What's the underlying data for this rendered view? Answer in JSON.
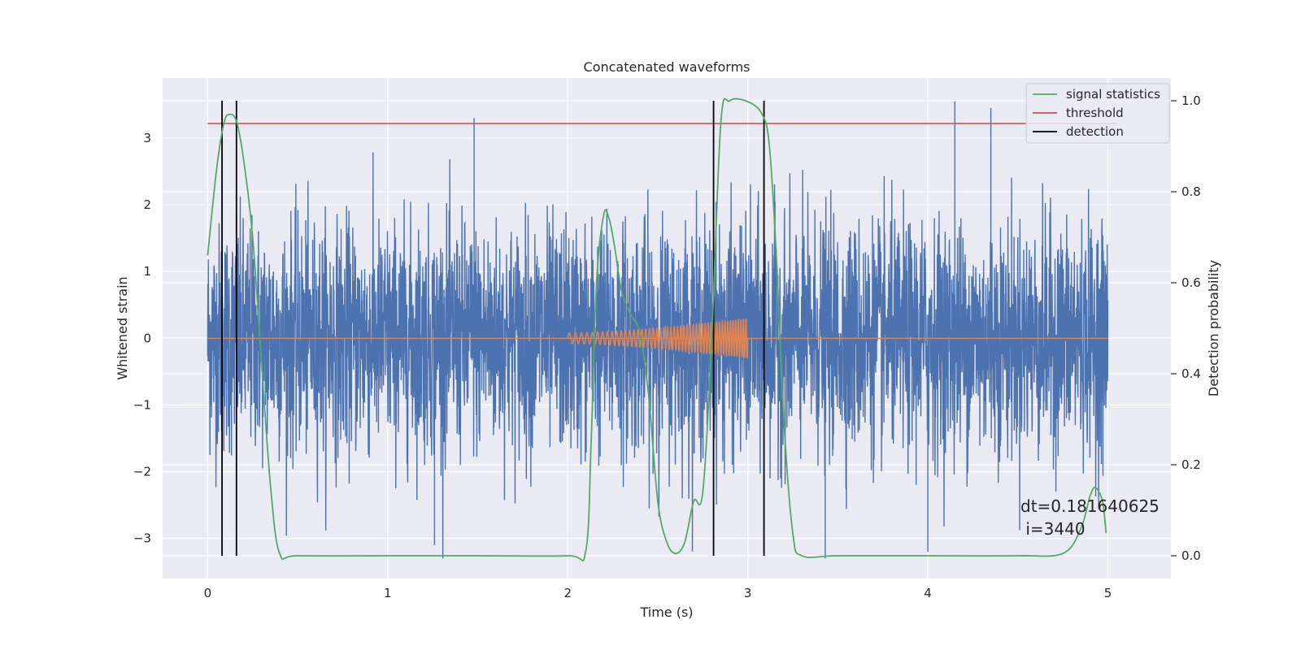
{
  "chart_data": {
    "type": "line",
    "title": "Concatenated waveforms",
    "xlabel": "Time (s)",
    "ylabel": "Whitened strain",
    "ylabel_right": "Detection probability",
    "xlim": [
      -0.25,
      5.35
    ],
    "ylim_left": [
      -3.6,
      3.9
    ],
    "ylim_right": [
      -0.05,
      1.05
    ],
    "x_ticks": [
      "0",
      "1",
      "2",
      "3",
      "4",
      "5"
    ],
    "y_left_ticks": [
      "−3",
      "−2",
      "−1",
      "0",
      "1",
      "2",
      "3"
    ],
    "y_right_ticks": [
      "0.0",
      "0.2",
      "0.4",
      "0.6",
      "0.8",
      "1.0"
    ],
    "grid": true,
    "legend_position": "top-right",
    "legend": [
      "signal statistics",
      "threshold",
      "detection"
    ],
    "colors": {
      "strain": "#4c72b0",
      "waveform": "#dd8452",
      "statistics": "#55a868",
      "threshold": "#c44e52",
      "detection": "#000000",
      "background": "#eaeaf2",
      "grid": "#ffffff"
    },
    "strain_noise": {
      "x_range": [
        0,
        5
      ],
      "approx_amplitude_range": [
        -3.3,
        3.6
      ],
      "note_peaks": [
        {
          "x": 1.48,
          "y": 3.3
        },
        {
          "x": 4.15,
          "y": 3.55
        },
        {
          "x": 4.35,
          "y": 3.45
        },
        {
          "x": 3.43,
          "y": -3.3
        },
        {
          "x": 1.26,
          "y": -3.1
        },
        {
          "x": 4.0,
          "y": -3.2
        }
      ]
    },
    "injected_waveform": {
      "x_range": [
        2.0,
        3.0
      ],
      "amplitude_start": 0.08,
      "amplitude_end": 0.3
    },
    "signal_statistics": {
      "x": [
        0.0,
        0.05,
        0.09,
        0.12,
        0.16,
        0.2,
        0.25,
        0.3,
        0.35,
        0.4,
        0.5,
        1.0,
        1.5,
        2.0,
        2.1,
        2.13,
        2.16,
        2.2,
        2.23,
        2.26,
        2.3,
        2.35,
        2.4,
        2.45,
        2.5,
        2.55,
        2.6,
        2.65,
        2.7,
        2.75,
        2.8,
        2.85,
        2.9,
        3.0,
        3.08,
        3.12,
        3.16,
        3.2,
        3.25,
        3.3,
        3.5,
        4.0,
        4.5,
        4.75,
        4.85,
        4.9,
        4.93,
        4.97,
        4.99
      ],
      "y": [
        0.66,
        0.85,
        0.95,
        0.97,
        0.955,
        0.87,
        0.7,
        0.42,
        0.15,
        0.005,
        0.0,
        0.0,
        0.0,
        0.0,
        0.01,
        0.25,
        0.6,
        0.75,
        0.74,
        0.68,
        0.58,
        0.53,
        0.49,
        0.35,
        0.12,
        0.03,
        0.005,
        0.03,
        0.12,
        0.14,
        0.48,
        0.95,
        1.0,
        0.998,
        0.97,
        0.9,
        0.65,
        0.3,
        0.05,
        0.0,
        0.0,
        0.0,
        0.0,
        0.005,
        0.06,
        0.13,
        0.15,
        0.12,
        0.05
      ]
    },
    "threshold": {
      "value": 0.95,
      "x_range": [
        0,
        5.05
      ]
    },
    "detections": [
      0.08,
      0.16,
      2.81,
      3.09
    ],
    "annotation": [
      "dt=0.181640625",
      " i=3440"
    ]
  }
}
